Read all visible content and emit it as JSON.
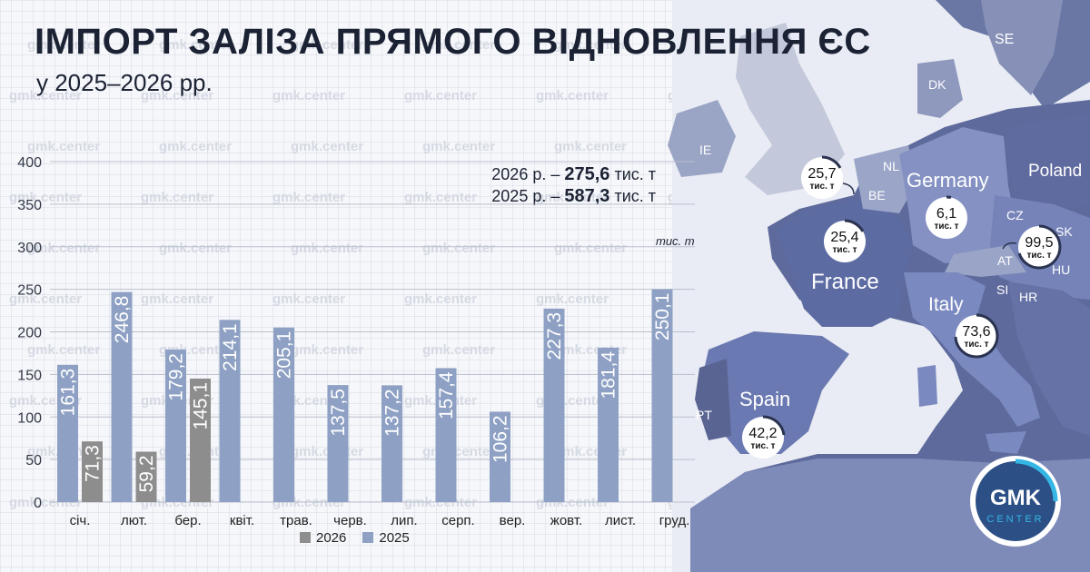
{
  "header": {
    "title": "ІМПОРТ ЗАЛІЗА ПРЯМОГО ВІДНОВЛЕННЯ ЄС",
    "subtitle": "у 2025–2026 рр."
  },
  "totals": {
    "line1_prefix": "2026 р. –",
    "line1_value": "275,6",
    "line1_suffix": "тис. т",
    "line2_prefix": "2025 р. –",
    "line2_value": "587,3",
    "line2_suffix": "тис. т"
  },
  "unit_label": "тис. т",
  "watermark": "gmk.center",
  "colors": {
    "s2026": "#8d8d8d",
    "s2025": "#8ea1c4"
  },
  "chart_data": {
    "type": "bar",
    "categories": [
      "січ.",
      "лют.",
      "бер.",
      "квіт.",
      "трав.",
      "черв.",
      "лип.",
      "серп.",
      "вер.",
      "жовт.",
      "лист.",
      "груд."
    ],
    "series": [
      {
        "name": "2025",
        "values": [
          161.3,
          246.8,
          179.2,
          214.1,
          205.1,
          137.5,
          137.2,
          157.4,
          106.2,
          227.3,
          181.4,
          250.1
        ],
        "labels": [
          "161,3",
          "246,8",
          "179,2",
          "214,1",
          "205,1",
          "137,5",
          "137,2",
          "157,4",
          "106,2",
          "227,3",
          "181,4",
          "250,1"
        ]
      },
      {
        "name": "2026",
        "values": [
          71.3,
          59.2,
          145.1,
          null,
          null,
          null,
          null,
          null,
          null,
          null,
          null,
          null
        ],
        "labels": [
          "71,3",
          "59,2",
          "145,1",
          "",
          "",
          "",
          "",
          "",
          "",
          "",
          "",
          ""
        ]
      }
    ],
    "yticks": [
      0,
      50,
      100,
      150,
      200,
      250,
      300,
      350,
      400
    ],
    "ylim": [
      0,
      400
    ],
    "legend": [
      "2026",
      "2025"
    ],
    "legend_position": "bottom"
  },
  "map": {
    "countries": {
      "se": "SE",
      "dk": "DK",
      "ie": "IE",
      "nl": "NL",
      "be": "BE",
      "germany": "Germany",
      "poland": "Poland",
      "cz": "CZ",
      "sk": "SK",
      "at": "AT",
      "hu": "HU",
      "si": "SI",
      "hr": "HR",
      "france": "France",
      "italy": "Italy",
      "spain": "Spain",
      "pt": "PT"
    },
    "bubbles": [
      {
        "value": "25,7",
        "unit": "тис. т",
        "target": "Belgium"
      },
      {
        "value": "6,1",
        "unit": "тис. т",
        "target": "Germany"
      },
      {
        "value": "25,4",
        "unit": "тис. т",
        "target": "France"
      },
      {
        "value": "99,5",
        "unit": "тис. т",
        "target": "Austria"
      },
      {
        "value": "73,6",
        "unit": "тис. т",
        "target": "Italy"
      },
      {
        "value": "42,2",
        "unit": "тис. т",
        "target": "Spain"
      }
    ]
  },
  "logo": {
    "main": "GMK",
    "sub": "CENTER"
  }
}
